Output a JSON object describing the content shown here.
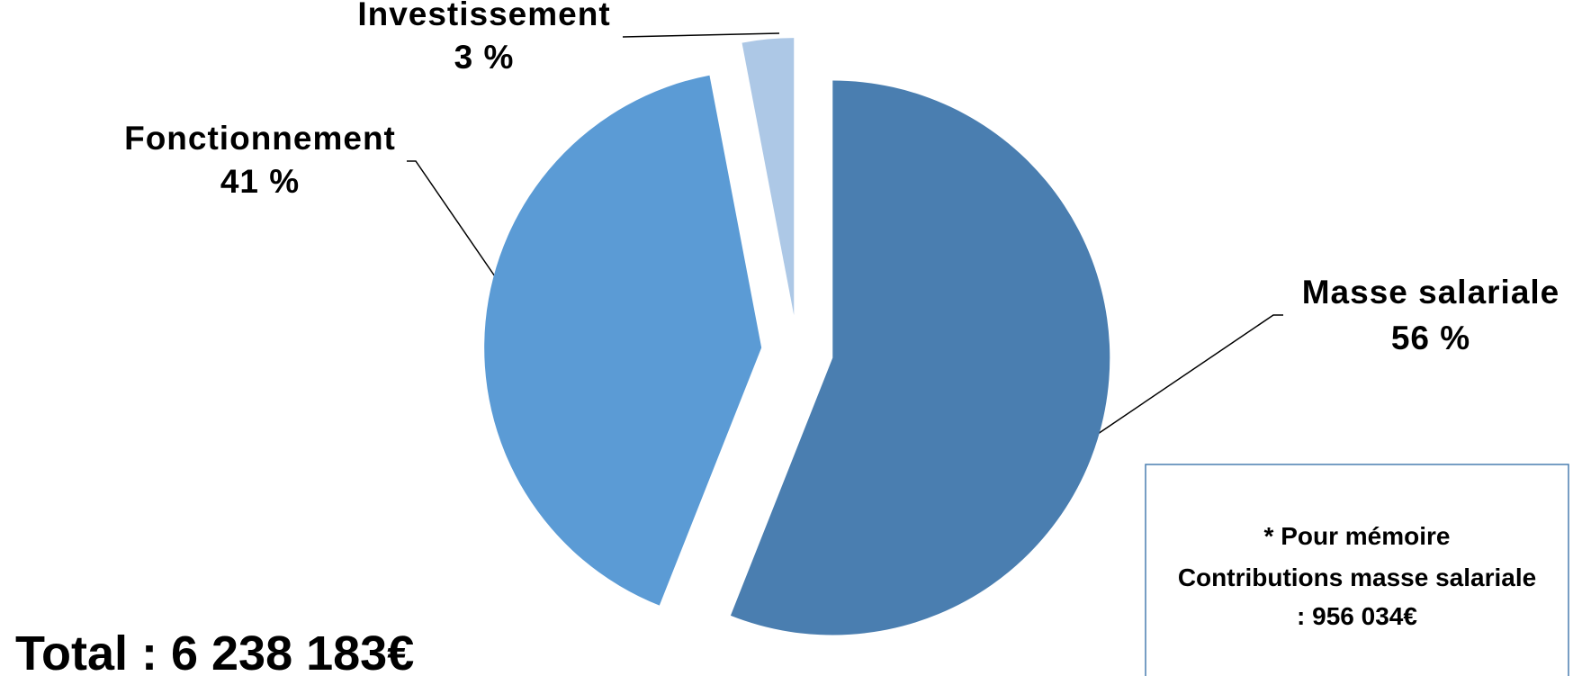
{
  "chart_data": {
    "type": "pie",
    "categories": [
      "Masse salariale",
      "Fonctionnement",
      "Investissement"
    ],
    "values": [
      56,
      41,
      3
    ],
    "value_labels": [
      "56 %",
      "41 %",
      "3 %"
    ],
    "colors": [
      "#4a7eb0",
      "#5b9bd5",
      "#adc8e6"
    ],
    "total": "Total : 6 238 183€",
    "note": [
      "* Pour mémoire",
      "Contributions masse salariale",
      ":  956 034€"
    ]
  }
}
